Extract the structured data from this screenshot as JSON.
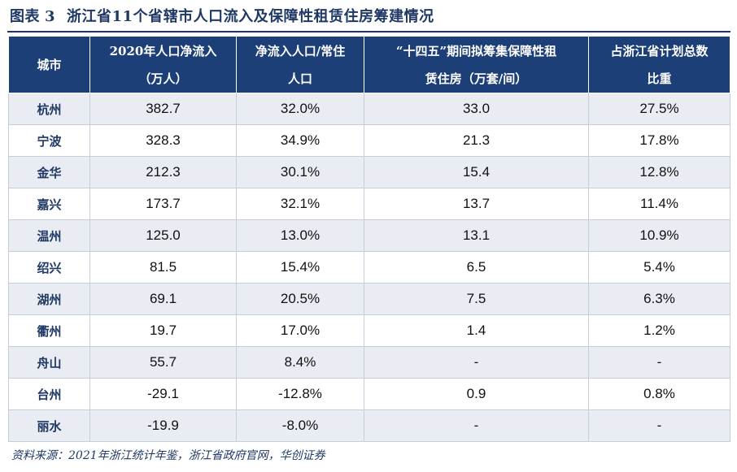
{
  "figure": {
    "label": "图表",
    "number": "3",
    "title": "浙江省11个省辖市人口流入及保障性租赁住房筹建情况"
  },
  "table": {
    "headers": [
      {
        "line1": "城市",
        "line2": ""
      },
      {
        "line1": "2020年人口净流入",
        "line2": "（万人）"
      },
      {
        "line1": "净流入人口/常住",
        "line2": "人口"
      },
      {
        "line1": "“十四五”期间拟筹集保障性租",
        "line2": "赁住房（万套/间）"
      },
      {
        "line1": "占浙江省计划总数",
        "line2": "比重"
      }
    ],
    "rows": [
      [
        "杭州",
        "382.7",
        "32.0%",
        "33.0",
        "27.5%"
      ],
      [
        "宁波",
        "328.3",
        "34.9%",
        "21.3",
        "17.8%"
      ],
      [
        "金华",
        "212.3",
        "30.1%",
        "15.4",
        "12.8%"
      ],
      [
        "嘉兴",
        "173.7",
        "32.1%",
        "13.7",
        "11.4%"
      ],
      [
        "温州",
        "125.0",
        "13.0%",
        "13.1",
        "10.9%"
      ],
      [
        "绍兴",
        "81.5",
        "15.4%",
        "6.5",
        "5.4%"
      ],
      [
        "湖州",
        "69.1",
        "20.5%",
        "7.5",
        "6.3%"
      ],
      [
        "衢州",
        "19.7",
        "17.0%",
        "1.4",
        "1.2%"
      ],
      [
        "舟山",
        "55.7",
        "8.4%",
        "-",
        "-"
      ],
      [
        "台州",
        "-29.1",
        "-12.8%",
        "0.9",
        "0.8%"
      ],
      [
        "丽水",
        "-19.9",
        "-8.0%",
        "-",
        "-"
      ]
    ]
  },
  "source": "资料来源：2021年浙江统计年鉴，浙江省政府官网，华创证券",
  "colors": {
    "header_bg": "#1d3f77",
    "title_text": "#1f3864",
    "stripe": "#e9ecf2"
  }
}
